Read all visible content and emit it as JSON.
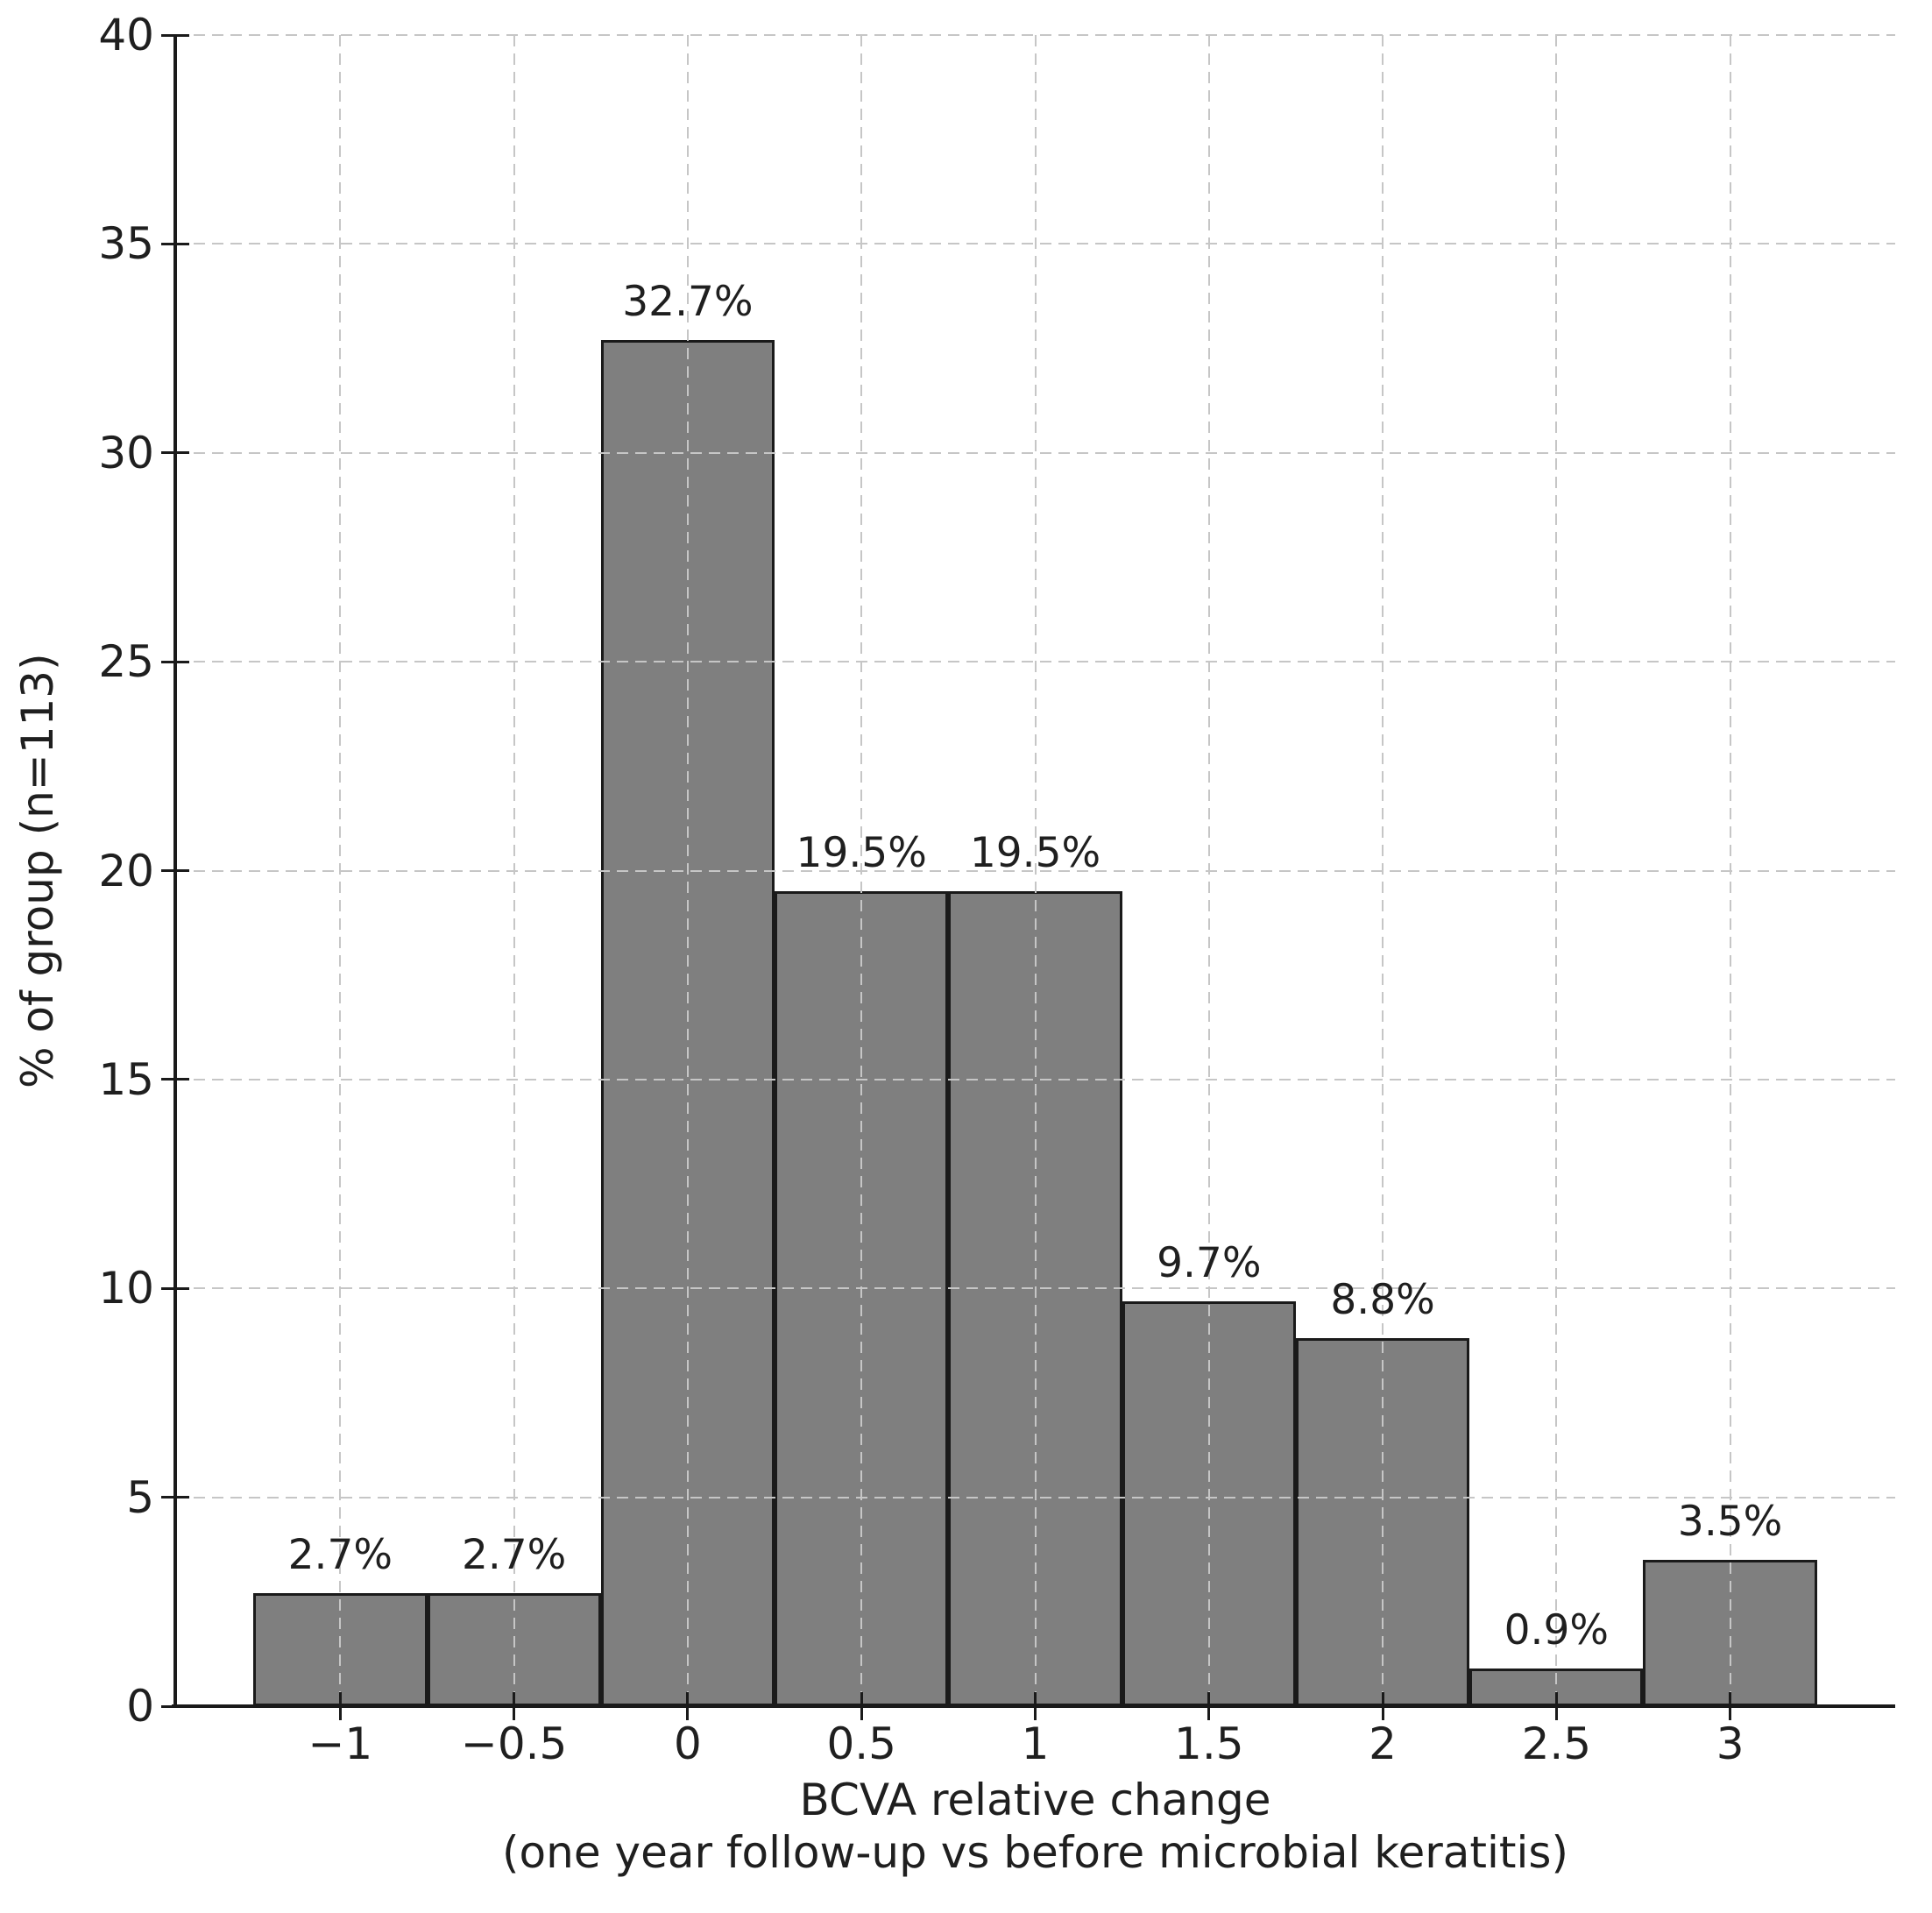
{
  "chart_data": {
    "type": "bar",
    "title": "",
    "xlabel_line1": "BCVA relative change",
    "xlabel_line2": "(one year follow-up vs before microbial keratitis)",
    "ylabel": "% of group (n=113)",
    "categories": [
      -1,
      -0.5,
      0,
      0.5,
      1,
      1.5,
      2,
      2.5,
      3
    ],
    "values": [
      2.7,
      2.7,
      32.7,
      19.5,
      19.5,
      9.7,
      8.8,
      0.9,
      3.5
    ],
    "bar_labels": [
      "2.7%",
      "2.7%",
      "32.7%",
      "19.5%",
      "19.5%",
      "9.7%",
      "8.8%",
      "0.9%",
      "3.5%"
    ],
    "x_tick_labels": [
      "−1",
      "−0.5",
      "0",
      "0.5",
      "1",
      "1.5",
      "2",
      "2.5",
      "3"
    ],
    "y_ticks": [
      0,
      5,
      10,
      15,
      20,
      25,
      30,
      35,
      40
    ],
    "y_tick_labels": [
      "0",
      "5",
      "10",
      "15",
      "20",
      "25",
      "30",
      "35",
      "40"
    ],
    "xlim": [
      -1.475,
      3.475
    ],
    "ylim": [
      0,
      40
    ],
    "bar_width": 0.5,
    "grid": "both-dashed",
    "legend_position": "none",
    "bar_color": "#7f7f7f",
    "bar_edge_color": "#1a1a1a",
    "grid_color": "#c6c6c6",
    "axis_color": "#1a1a1a",
    "text_color": "#1f1f1f",
    "background_color": "#ffffff"
  }
}
